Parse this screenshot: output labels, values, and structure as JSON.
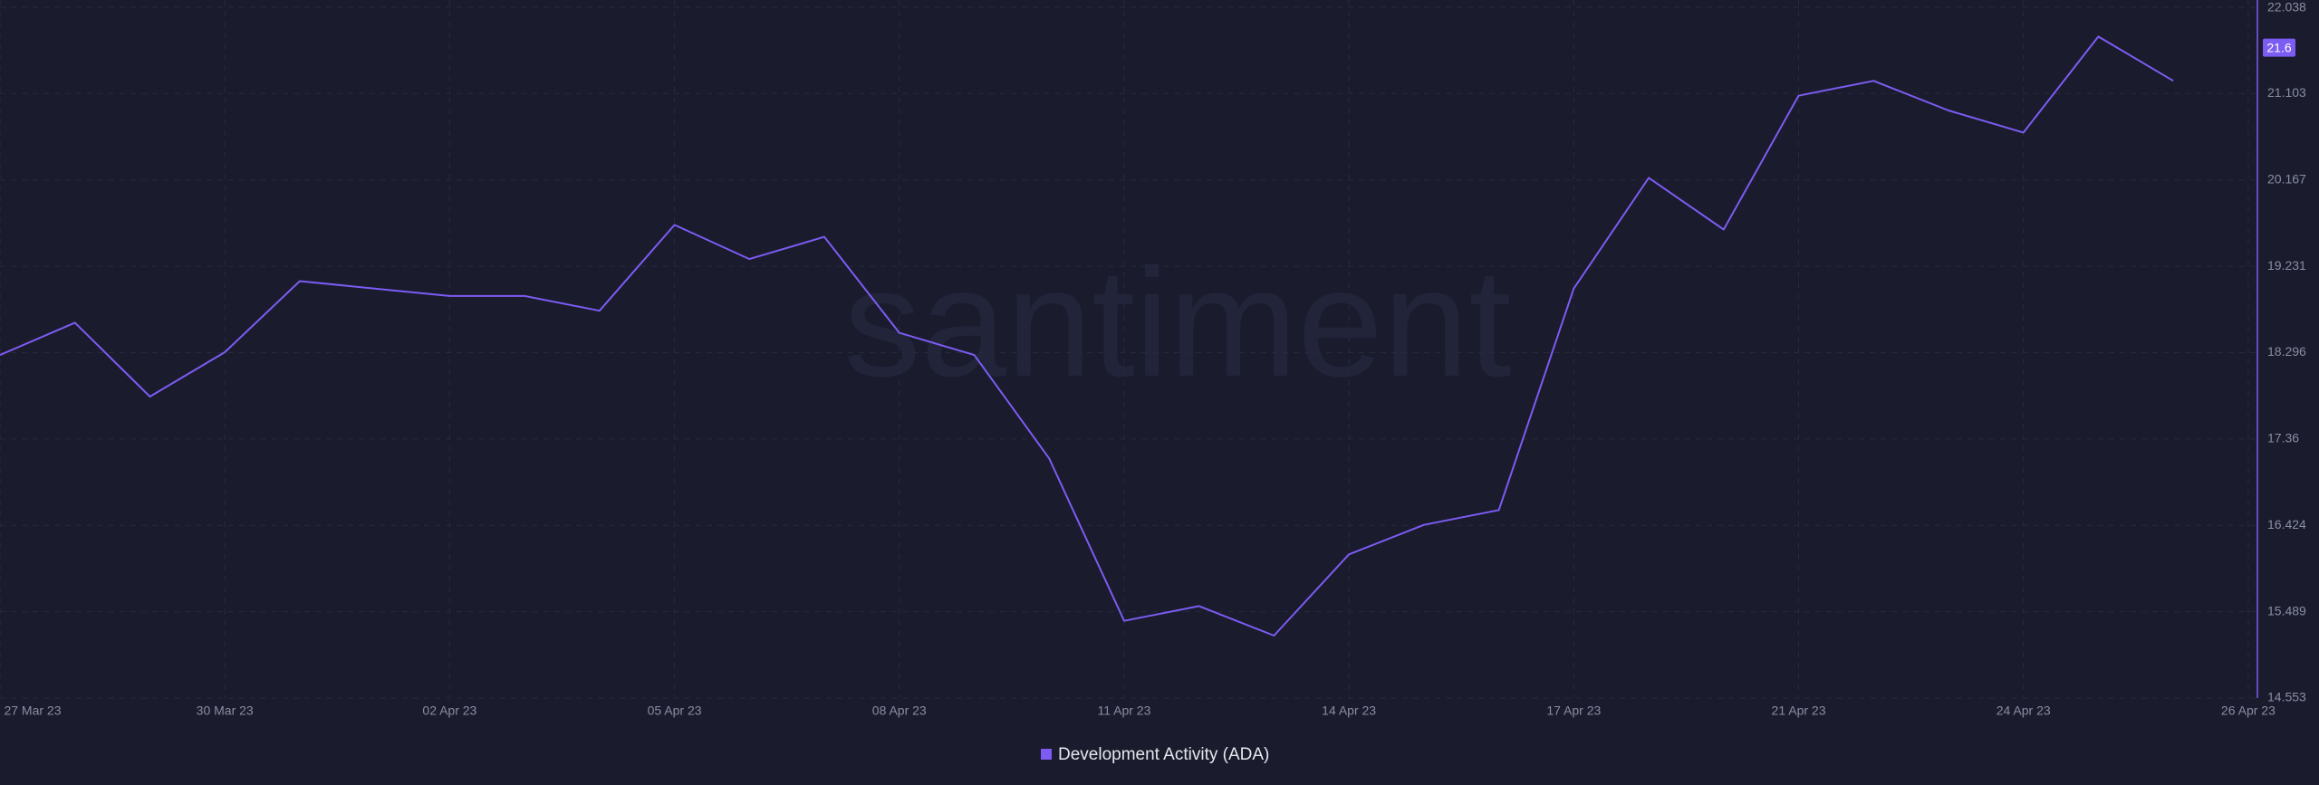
{
  "chart_data": {
    "type": "line",
    "watermark": "santiment",
    "categories": [
      "27 Mar 23",
      null,
      null,
      "30 Mar 23",
      null,
      null,
      "02 Apr 23",
      null,
      null,
      "05 Apr 23",
      null,
      null,
      "08 Apr 23",
      null,
      null,
      "11 Apr 23",
      null,
      null,
      "14 Apr 23",
      null,
      null,
      "17 Apr 23",
      null,
      null,
      "21 Apr 23",
      null,
      null,
      "24 Apr 23",
      null,
      null,
      "26 Apr 23"
    ],
    "series": [
      {
        "name": "Development Activity (ADA)",
        "color": "#7c5cf2",
        "values": [
          18.27,
          18.62,
          17.82,
          18.3,
          19.07,
          18.99,
          18.91,
          18.91,
          18.75,
          19.68,
          19.31,
          19.55,
          18.51,
          18.27,
          17.15,
          15.39,
          15.55,
          15.23,
          16.11,
          16.43,
          16.59,
          18.99,
          20.19,
          19.63,
          21.08,
          21.24,
          20.92,
          20.68,
          21.72,
          21.24,
          null
        ]
      }
    ],
    "current_value": 21.6,
    "ylim": [
      14.553,
      22.038
    ],
    "yticks": [
      14.553,
      15.489,
      16.424,
      17.36,
      18.296,
      19.231,
      20.167,
      21.103,
      22.038
    ],
    "grid": true
  }
}
